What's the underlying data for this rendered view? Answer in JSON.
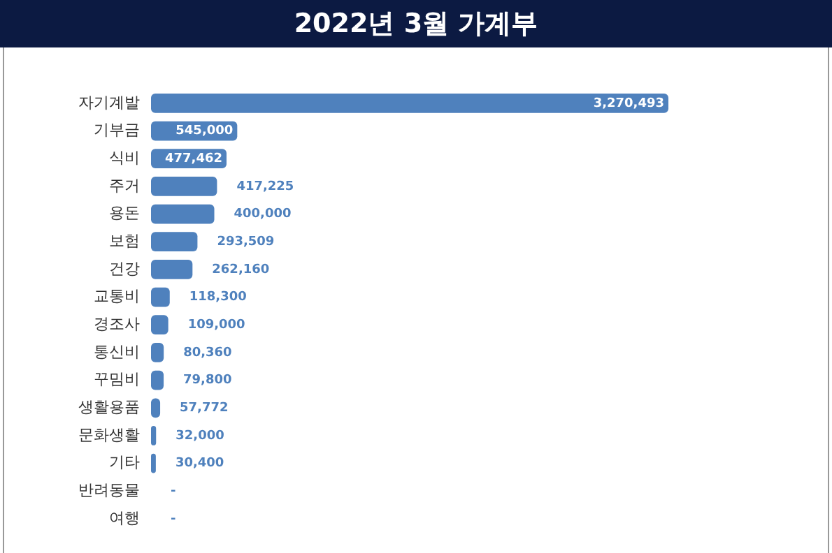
{
  "chart_data": {
    "type": "bar",
    "orientation": "horizontal",
    "title": "2022년 3월 가계부",
    "categories": [
      "자기계발",
      "기부금",
      "식비",
      "주거",
      "용돈",
      "보험",
      "건강",
      "교통비",
      "경조사",
      "통신비",
      "꾸밈비",
      "생활용품",
      "문화생활",
      "기타",
      "반려동물",
      "여행"
    ],
    "values": [
      3270493,
      545000,
      477462,
      417225,
      400000,
      293509,
      262160,
      118300,
      109000,
      80360,
      79800,
      57772,
      32000,
      30400,
      0,
      0
    ],
    "value_labels": [
      "3,270,493",
      "545,000",
      "477,462",
      "417,225",
      "400,000",
      "293,509",
      "262,160",
      "118,300",
      "109,000",
      "80,360",
      "79,800",
      "57,772",
      "32,000",
      "30,400",
      "-",
      "-"
    ],
    "color": "#4f81bd",
    "grid": false,
    "legend": false
  }
}
